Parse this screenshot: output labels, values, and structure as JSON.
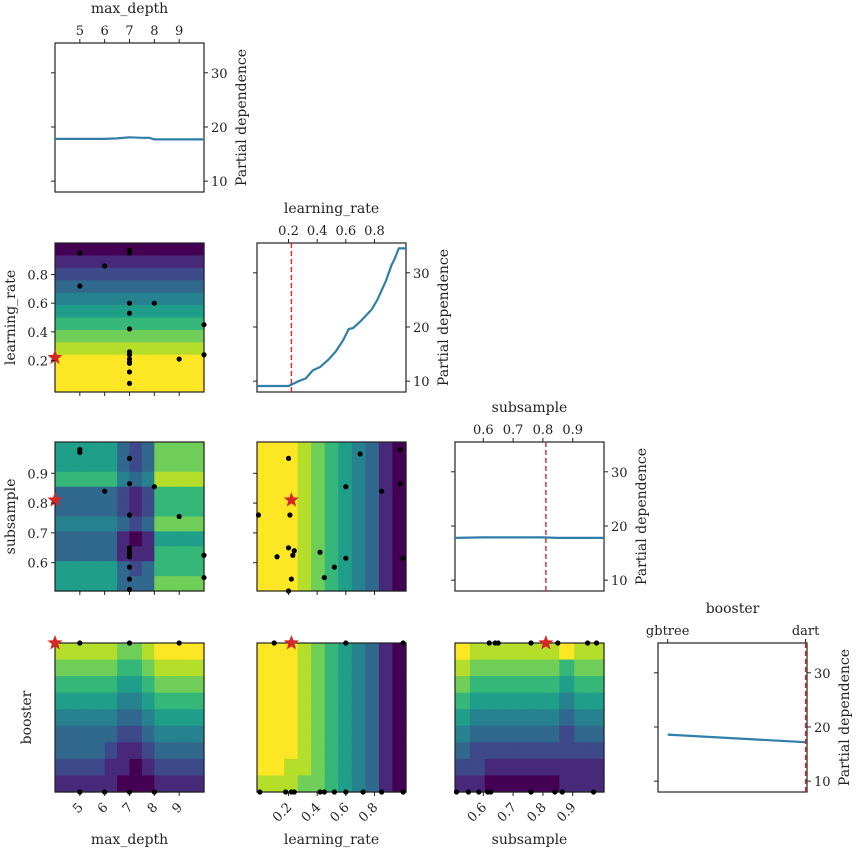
{
  "chart_data": {
    "type": "heatmap",
    "dimensions": [
      {
        "name": "max_depth",
        "range": [
          4,
          10
        ],
        "ticks": [
          5,
          6,
          7,
          8,
          9
        ],
        "tick_labels": [
          "5",
          "6",
          "7",
          "8",
          "9"
        ]
      },
      {
        "name": "learning_rate",
        "range": [
          -0.02,
          1.02
        ],
        "ticks": [
          0.2,
          0.4,
          0.6,
          0.8
        ],
        "tick_labels": [
          "0.2",
          "0.4",
          "0.6",
          "0.8"
        ]
      },
      {
        "name": "subsample",
        "range": [
          0.505,
          1.005
        ],
        "ticks": [
          0.6,
          0.7,
          0.8,
          0.9
        ],
        "tick_labels": [
          "0.6",
          "0.7",
          "0.8",
          "0.9"
        ]
      },
      {
        "name": "booster",
        "range": [
          -0.07,
          1.01
        ],
        "range_2d": [
          0,
          1
        ],
        "ticks": [
          0,
          1
        ],
        "tick_labels": [
          "gbtree",
          "dart"
        ]
      }
    ],
    "dependence_axis": {
      "label": "Partial dependence",
      "range": [
        8,
        35.5
      ],
      "ticks": [
        10,
        20,
        30
      ],
      "tick_labels": [
        "10",
        "20",
        "30"
      ]
    },
    "colors": {
      "line": "#2f7fa8",
      "optimum": "#d62728",
      "points": "#000000",
      "viridis": [
        "#440154",
        "#482878",
        "#3e4989",
        "#31688e",
        "#26828e",
        "#1f9e89",
        "#35b779",
        "#6ece58",
        "#b5de2b",
        "#fde725"
      ]
    },
    "optimum": [
      4,
      0.22,
      0.81,
      1
    ],
    "diagonal": [
      {
        "dim": 0,
        "type": "line",
        "x": [
          4,
          5,
          6,
          6.5,
          7,
          7.5,
          7.8,
          8,
          9,
          10
        ],
        "y": [
          17.8,
          17.8,
          17.8,
          17.9,
          18.1,
          18.0,
          18.0,
          17.7,
          17.7,
          17.7
        ]
      },
      {
        "dim": 1,
        "type": "line",
        "x": [
          -0.02,
          0.2,
          0.27,
          0.32,
          0.37,
          0.42,
          0.48,
          0.53,
          0.58,
          0.62,
          0.65,
          0.7,
          0.78,
          0.82,
          0.88,
          0.92,
          0.94,
          0.97,
          1.02
        ],
        "y": [
          9.1,
          9.1,
          10.0,
          10.5,
          12.0,
          12.6,
          14.0,
          15.5,
          17.5,
          19.6,
          19.8,
          21.0,
          23.2,
          25.0,
          28.5,
          31.5,
          32.5,
          34.5,
          34.5
        ]
      },
      {
        "dim": 2,
        "type": "line",
        "x": [
          0.505,
          0.6,
          0.7,
          0.8,
          0.85,
          0.9,
          1.005
        ],
        "y": [
          17.8,
          17.9,
          17.9,
          17.9,
          17.8,
          17.8,
          17.8
        ]
      },
      {
        "dim": 3,
        "type": "line",
        "x": [
          0,
          1
        ],
        "y": [
          18.6,
          17.2
        ]
      }
    ],
    "pairs": [
      {
        "row": 1,
        "col": 0,
        "type": "heatmap",
        "levels": [
          [
            0
          ],
          [
            1
          ],
          [
            2
          ],
          [
            3
          ],
          [
            4
          ],
          [
            5
          ],
          [
            6
          ],
          [
            7
          ],
          [
            8
          ],
          [
            9
          ],
          [
            9
          ],
          [
            9
          ]
        ],
        "points": [
          [
            5,
            0.95
          ],
          [
            6,
            0.86
          ],
          [
            7,
            0.97
          ],
          [
            7,
            0.95
          ],
          [
            5,
            0.72
          ],
          [
            7,
            0.6
          ],
          [
            8,
            0.6
          ],
          [
            7,
            0.53
          ],
          [
            7,
            0.42
          ],
          [
            10,
            0.45
          ],
          [
            7,
            0.26
          ],
          [
            7,
            0.24
          ],
          [
            7,
            0.21
          ],
          [
            7,
            0.19
          ],
          [
            7,
            0.18
          ],
          [
            9,
            0.21
          ],
          [
            10,
            0.24
          ],
          [
            7,
            0.12
          ],
          [
            7,
            0.04
          ]
        ]
      },
      {
        "row": 2,
        "col": 0,
        "type": "heatmap",
        "levels": [
          [
            5,
            5,
            5,
            5,
            5,
            3,
            2,
            3,
            7,
            7,
            7,
            7
          ],
          [
            5,
            5,
            5,
            5,
            5,
            3,
            2,
            3,
            7,
            7,
            7,
            7
          ],
          [
            6,
            6,
            6,
            6,
            6,
            4,
            3,
            4,
            8,
            8,
            8,
            8
          ],
          [
            3,
            3,
            3,
            3,
            3,
            2,
            1,
            2,
            6,
            6,
            6,
            6
          ],
          [
            3,
            3,
            3,
            3,
            3,
            2,
            1,
            2,
            6,
            6,
            6,
            6
          ],
          [
            4,
            4,
            4,
            4,
            4,
            3,
            2,
            3,
            7,
            7,
            7,
            7
          ],
          [
            3,
            3,
            3,
            3,
            3,
            1,
            0,
            1,
            5,
            5,
            5,
            5
          ],
          [
            3,
            3,
            3,
            3,
            3,
            1,
            1,
            1,
            6,
            6,
            6,
            6
          ],
          [
            5,
            5,
            5,
            5,
            5,
            3,
            2,
            3,
            6,
            6,
            6,
            6
          ],
          [
            5,
            5,
            5,
            5,
            5,
            3,
            3,
            3,
            7,
            7,
            7,
            7
          ]
        ],
        "points": [
          [
            5,
            0.98
          ],
          [
            5,
            0.97
          ],
          [
            6,
            0.84
          ],
          [
            7,
            0.95
          ],
          [
            7,
            0.865
          ],
          [
            8,
            0.855
          ],
          [
            7,
            0.76
          ],
          [
            9,
            0.755
          ],
          [
            7,
            0.65
          ],
          [
            7,
            0.64
          ],
          [
            7,
            0.63
          ],
          [
            7,
            0.62
          ],
          [
            10,
            0.625
          ],
          [
            7,
            0.585
          ],
          [
            7,
            0.545
          ],
          [
            10,
            0.55
          ],
          [
            7,
            0.51
          ]
        ]
      },
      {
        "row": 2,
        "col": 1,
        "type": "heatmap",
        "levels": [
          [
            9,
            9,
            9,
            8,
            7,
            6,
            5,
            4,
            3,
            1,
            0
          ]
        ],
        "points": [
          [
            0.2,
            0.95
          ],
          [
            -0.01,
            0.76
          ],
          [
            0.21,
            0.76
          ],
          [
            0.2,
            0.65
          ],
          [
            0.12,
            0.62
          ],
          [
            0.24,
            0.64
          ],
          [
            0.23,
            0.625
          ],
          [
            0.22,
            0.545
          ],
          [
            0.42,
            0.635
          ],
          [
            0.52,
            0.585
          ],
          [
            0.6,
            0.615
          ],
          [
            0.45,
            0.55
          ],
          [
            0.6,
            0.855
          ],
          [
            0.7,
            0.965
          ],
          [
            0.85,
            0.84
          ],
          [
            0.98,
            0.98
          ],
          [
            0.98,
            0.865
          ],
          [
            1.0,
            0.615
          ],
          [
            0.2,
            0.505
          ]
        ]
      },
      {
        "row": 3,
        "col": 0,
        "type": "heatmap",
        "levels": [
          [
            8,
            8,
            8,
            8,
            8,
            7,
            7,
            8,
            9,
            9,
            9,
            9
          ],
          [
            7,
            7,
            7,
            7,
            7,
            6,
            6,
            7,
            8,
            8,
            8,
            8
          ],
          [
            6,
            6,
            6,
            6,
            6,
            5,
            5,
            6,
            7,
            7,
            7,
            7
          ],
          [
            5,
            5,
            5,
            5,
            5,
            4,
            4,
            5,
            6,
            6,
            6,
            6
          ],
          [
            4,
            4,
            4,
            4,
            4,
            3,
            3,
            4,
            5,
            5,
            5,
            5
          ],
          [
            3,
            3,
            3,
            3,
            3,
            2,
            2,
            3,
            4,
            4,
            4,
            4
          ],
          [
            3,
            3,
            3,
            3,
            2,
            1,
            1,
            2,
            3,
            3,
            3,
            3
          ],
          [
            2,
            2,
            2,
            2,
            1,
            1,
            0,
            1,
            2,
            2,
            2,
            2
          ],
          [
            1,
            1,
            1,
            1,
            1,
            0,
            0,
            0,
            1,
            1,
            1,
            1
          ]
        ],
        "points": [
          [
            5,
            1
          ],
          [
            7,
            1
          ],
          [
            9,
            1
          ],
          [
            5,
            0
          ],
          [
            6,
            0
          ],
          [
            7,
            0
          ],
          [
            8,
            0
          ]
        ]
      },
      {
        "row": 3,
        "col": 1,
        "type": "heatmap",
        "levels": [
          [
            9,
            9,
            9,
            8,
            7,
            6,
            5,
            4,
            3,
            1,
            0
          ],
          [
            9,
            9,
            9,
            8,
            7,
            6,
            5,
            4,
            3,
            1,
            0
          ],
          [
            9,
            9,
            9,
            8,
            7,
            6,
            5,
            4,
            3,
            1,
            0
          ],
          [
            9,
            9,
            9,
            8,
            7,
            6,
            5,
            4,
            3,
            1,
            0
          ],
          [
            9,
            9,
            9,
            8,
            7,
            6,
            5,
            4,
            3,
            1,
            0
          ],
          [
            9,
            9,
            9,
            8,
            7,
            6,
            5,
            4,
            3,
            1,
            0
          ],
          [
            9,
            9,
            9,
            8,
            7,
            6,
            5,
            4,
            3,
            1,
            0
          ],
          [
            9,
            9,
            8,
            8,
            7,
            6,
            5,
            4,
            3,
            1,
            0
          ],
          [
            8,
            8,
            8,
            7,
            7,
            6,
            5,
            4,
            3,
            1,
            0
          ]
        ],
        "points": [
          [
            0.1,
            1
          ],
          [
            0.6,
            1
          ],
          [
            1.0,
            1
          ],
          [
            0.0,
            0
          ],
          [
            0.18,
            0
          ],
          [
            0.22,
            0
          ],
          [
            0.24,
            0
          ],
          [
            0.42,
            0
          ],
          [
            0.45,
            0
          ],
          [
            0.52,
            0
          ],
          [
            0.6,
            0
          ],
          [
            0.72,
            0
          ],
          [
            0.85,
            0
          ],
          [
            1.0,
            0
          ]
        ]
      },
      {
        "row": 3,
        "col": 2,
        "type": "heatmap",
        "levels": [
          [
            9,
            8,
            8,
            8,
            8,
            8,
            8,
            9,
            8,
            8
          ],
          [
            8,
            7,
            7,
            7,
            7,
            7,
            7,
            6,
            7,
            7
          ],
          [
            7,
            6,
            6,
            6,
            6,
            6,
            6,
            5,
            6,
            6
          ],
          [
            6,
            5,
            5,
            5,
            5,
            5,
            5,
            4,
            5,
            5
          ],
          [
            5,
            4,
            4,
            4,
            4,
            4,
            4,
            3,
            4,
            4
          ],
          [
            4,
            3,
            3,
            3,
            3,
            3,
            3,
            2,
            3,
            3
          ],
          [
            3,
            2,
            2,
            2,
            2,
            2,
            2,
            2,
            2,
            2
          ],
          [
            2,
            2,
            1,
            1,
            1,
            1,
            1,
            1,
            1,
            1
          ],
          [
            1,
            1,
            0,
            0,
            0,
            0,
            0,
            1,
            1,
            1
          ]
        ],
        "points": [
          [
            0.62,
            1
          ],
          [
            0.64,
            1
          ],
          [
            0.65,
            1
          ],
          [
            0.76,
            1
          ],
          [
            0.85,
            1
          ],
          [
            0.95,
            1
          ],
          [
            0.98,
            1
          ],
          [
            0.51,
            0
          ],
          [
            0.55,
            0
          ],
          [
            0.585,
            0
          ],
          [
            0.615,
            0
          ],
          [
            0.625,
            0
          ],
          [
            0.76,
            0
          ],
          [
            0.84,
            0
          ],
          [
            0.865,
            0
          ],
          [
            0.97,
            0
          ]
        ]
      }
    ]
  }
}
